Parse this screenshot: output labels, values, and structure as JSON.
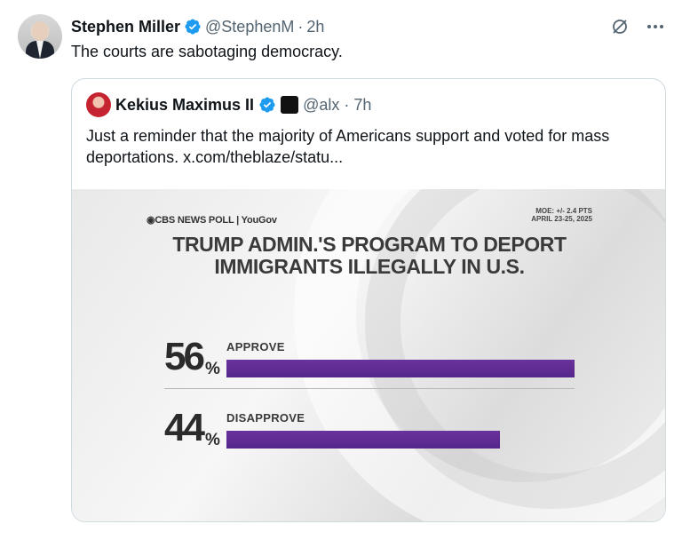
{
  "tweet": {
    "author_name": "Stephen Miller",
    "author_handle": "@StephenM",
    "separator": "·",
    "time": "2h",
    "text": "The courts are sabotaging democracy."
  },
  "quote": {
    "author_name": "Kekius Maximus II",
    "author_handle": "@alx",
    "separator": "·",
    "time": "7h",
    "text": "Just a reminder that the majority of Americans support and voted for mass deportations.  x.com/theblaze/statu..."
  },
  "poll_image": {
    "source": "◉CBS NEWS POLL | YouGov",
    "moe_line1": "MOE: +/- 2.4 PTS",
    "moe_line2": "APRIL 23-25, 2025",
    "title_line1": "TRUMP ADMIN.'S PROGRAM TO DEPORT",
    "title_line2": "IMMIGRANTS ILLEGALLY IN U.S."
  },
  "chart_data": {
    "type": "bar",
    "title": "TRUMP ADMIN.'S PROGRAM TO DEPORT IMMIGRANTS ILLEGALLY IN U.S.",
    "categories": [
      "APPROVE",
      "DISAPPROVE"
    ],
    "values": [
      56,
      44
    ],
    "value_labels": [
      "56",
      "44"
    ],
    "unit": "%",
    "ylim": [
      0,
      56
    ],
    "bar_color": "#6a329c"
  },
  "colors": {
    "verified_blue": "#1d9bf0",
    "secondary_text": "#536471"
  },
  "icons": {
    "verified": "verified-badge-icon",
    "grok": "grok-icon",
    "more": "more-icon"
  }
}
